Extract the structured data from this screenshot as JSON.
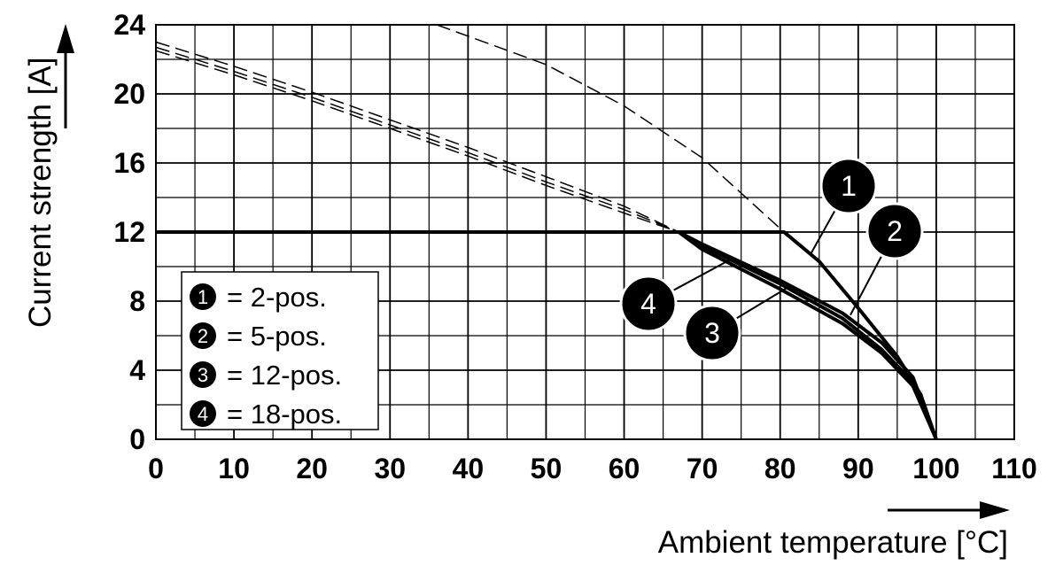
{
  "chart_data": {
    "type": "line",
    "xlabel": "Ambient temperature [°C]",
    "ylabel": "Current strength [A]",
    "xlim": [
      0,
      110
    ],
    "ylim": [
      0,
      24
    ],
    "xticks": [
      0,
      10,
      20,
      30,
      40,
      50,
      60,
      70,
      80,
      90,
      100,
      110
    ],
    "yticks": [
      0,
      4,
      8,
      12,
      16,
      20,
      24
    ],
    "grid": true,
    "legend_position": "bottom-left",
    "series": [
      {
        "badge": "1",
        "name": "= 2-pos.",
        "derating": [
          [
            0,
            12
          ],
          [
            80.5,
            12
          ],
          [
            85,
            10.3
          ],
          [
            90,
            7.6
          ],
          [
            95,
            4.8
          ],
          [
            98,
            2.6
          ],
          [
            100,
            0
          ]
        ],
        "limit_dashed": [
          [
            36,
            24
          ],
          [
            50,
            21.7
          ],
          [
            60,
            19.3
          ],
          [
            70,
            16.3
          ],
          [
            80.5,
            12
          ]
        ]
      },
      {
        "badge": "2",
        "name": "= 5-pos.",
        "derating": [
          [
            0,
            12
          ],
          [
            67,
            12
          ],
          [
            70,
            11.3
          ],
          [
            80,
            9.2
          ],
          [
            88,
            7.3
          ],
          [
            93,
            5.6
          ],
          [
            97,
            3.6
          ],
          [
            100,
            0
          ]
        ],
        "limit_dashed": [
          [
            0,
            23
          ],
          [
            10,
            21.6
          ],
          [
            20,
            20.1
          ],
          [
            30,
            18.5
          ],
          [
            40,
            16.9
          ],
          [
            50,
            15.2
          ],
          [
            60,
            13.5
          ],
          [
            67,
            12
          ]
        ]
      },
      {
        "badge": "3",
        "name": "= 12-pos.",
        "derating": [
          [
            0,
            12
          ],
          [
            67,
            12
          ],
          [
            70,
            11.2
          ],
          [
            80,
            9
          ],
          [
            88,
            7
          ],
          [
            93,
            5.2
          ],
          [
            97,
            3.3
          ],
          [
            100,
            0
          ]
        ],
        "limit_dashed": [
          [
            0,
            22.7
          ],
          [
            10,
            21.3
          ],
          [
            20,
            19.8
          ],
          [
            30,
            18.2
          ],
          [
            40,
            16.6
          ],
          [
            50,
            14.9
          ],
          [
            60,
            13.3
          ],
          [
            67,
            12
          ]
        ]
      },
      {
        "badge": "4",
        "name": "= 18-pos.",
        "derating": [
          [
            0,
            12
          ],
          [
            67,
            12
          ],
          [
            70,
            11
          ],
          [
            80,
            8.7
          ],
          [
            88,
            6.7
          ],
          [
            93,
            5
          ],
          [
            97,
            3.1
          ],
          [
            100,
            0
          ]
        ],
        "limit_dashed": [
          [
            0,
            22.5
          ],
          [
            10,
            21.1
          ],
          [
            20,
            19.6
          ],
          [
            30,
            18
          ],
          [
            40,
            16.4
          ],
          [
            50,
            14.7
          ],
          [
            60,
            13.1
          ],
          [
            67,
            12
          ]
        ]
      }
    ]
  }
}
